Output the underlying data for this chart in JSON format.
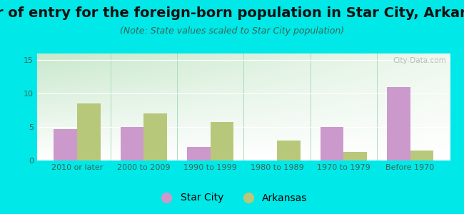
{
  "title": "Year of entry for the foreign-born population in Star City, Arkansas",
  "subtitle": "(Note: State values scaled to Star City population)",
  "categories": [
    "2010 or later",
    "2000 to 2009",
    "1990 to 1999",
    "1980 to 1989",
    "1970 to 1979",
    "Before 1970"
  ],
  "star_city": [
    4.7,
    5.0,
    2.0,
    0,
    5.0,
    11.0
  ],
  "arkansas": [
    8.5,
    7.0,
    5.8,
    3.0,
    1.3,
    1.5
  ],
  "star_city_color": "#cc99cc",
  "arkansas_color": "#b8c87a",
  "background_color": "#00e8e8",
  "plot_bg_color_topleft": "#c8e8cc",
  "plot_bg_color_topright": "#eef8ee",
  "plot_bg_color_bottom": "#ffffff",
  "ylim": [
    0,
    16
  ],
  "yticks": [
    0,
    5,
    10,
    15
  ],
  "bar_width": 0.35,
  "title_fontsize": 14,
  "subtitle_fontsize": 9,
  "tick_fontsize": 8,
  "legend_fontsize": 10,
  "watermark": "City-Data.com"
}
